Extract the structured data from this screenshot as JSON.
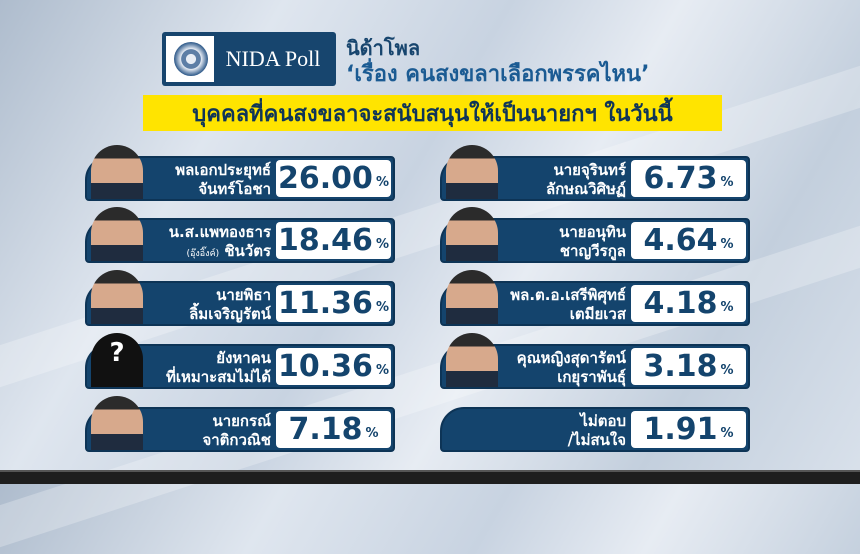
{
  "logo": {
    "text": "NIDA Poll"
  },
  "header": {
    "title": "นิด้าโพล",
    "subtitle": "‘เรื่อง คนสงขลาเลือกพรรคไหน’",
    "question": "บุคคลที่คนสงขลาจะสนับสนุนให้เป็นนายกฯ ในวันนี้"
  },
  "colors": {
    "navy": "#14446d",
    "highlight": "#ffe400"
  },
  "chart_data": {
    "type": "table",
    "title": "บุคคลที่คนสงขลาจะสนับสนุนให้เป็นนายกฯ ในวันนี้",
    "unit": "%",
    "rows": [
      {
        "line1": "พลเอกประยุทธ์",
        "line2": "จันทร์โอชา",
        "note": "",
        "value": "26.00",
        "photo": "portrait"
      },
      {
        "line1": "น.ส.แพทองธาร",
        "line2": "ชินวัตร",
        "note": "(อุ๊งอิ๊งค์)",
        "value": "18.46",
        "photo": "portrait"
      },
      {
        "line1": "นายพิธา",
        "line2": "ลิ้มเจริญรัตน์",
        "note": "",
        "value": "11.36",
        "photo": "portrait"
      },
      {
        "line1": "ยังหาคน",
        "line2": "ที่เหมาะสมไม่ได้",
        "note": "",
        "value": "10.36",
        "photo": "unknown-silhouette"
      },
      {
        "line1": "นายกรณ์",
        "line2": "จาติกวณิช",
        "note": "",
        "value": "7.18",
        "photo": "portrait"
      },
      {
        "line1": "นายจุรินทร์",
        "line2": "ลักษณวิศิษฏ์",
        "note": "",
        "value": "6.73",
        "photo": "portrait"
      },
      {
        "line1": "นายอนุทิน",
        "line2": "ชาญวีรกูล",
        "note": "",
        "value": "4.64",
        "photo": "portrait"
      },
      {
        "line1": "พล.ต.อ.เสรีพิศุทธ์",
        "line2": "เตมียเวส",
        "note": "",
        "value": "4.18",
        "photo": "portrait"
      },
      {
        "line1": "คุณหญิงสุดารัตน์",
        "line2": "เกยุราพันธุ์",
        "note": "",
        "value": "3.18",
        "photo": "portrait"
      },
      {
        "line1": "ไม่ตอบ",
        "line2": "/ไม่สนใจ",
        "note": "",
        "value": "1.91",
        "photo": "none"
      }
    ]
  }
}
